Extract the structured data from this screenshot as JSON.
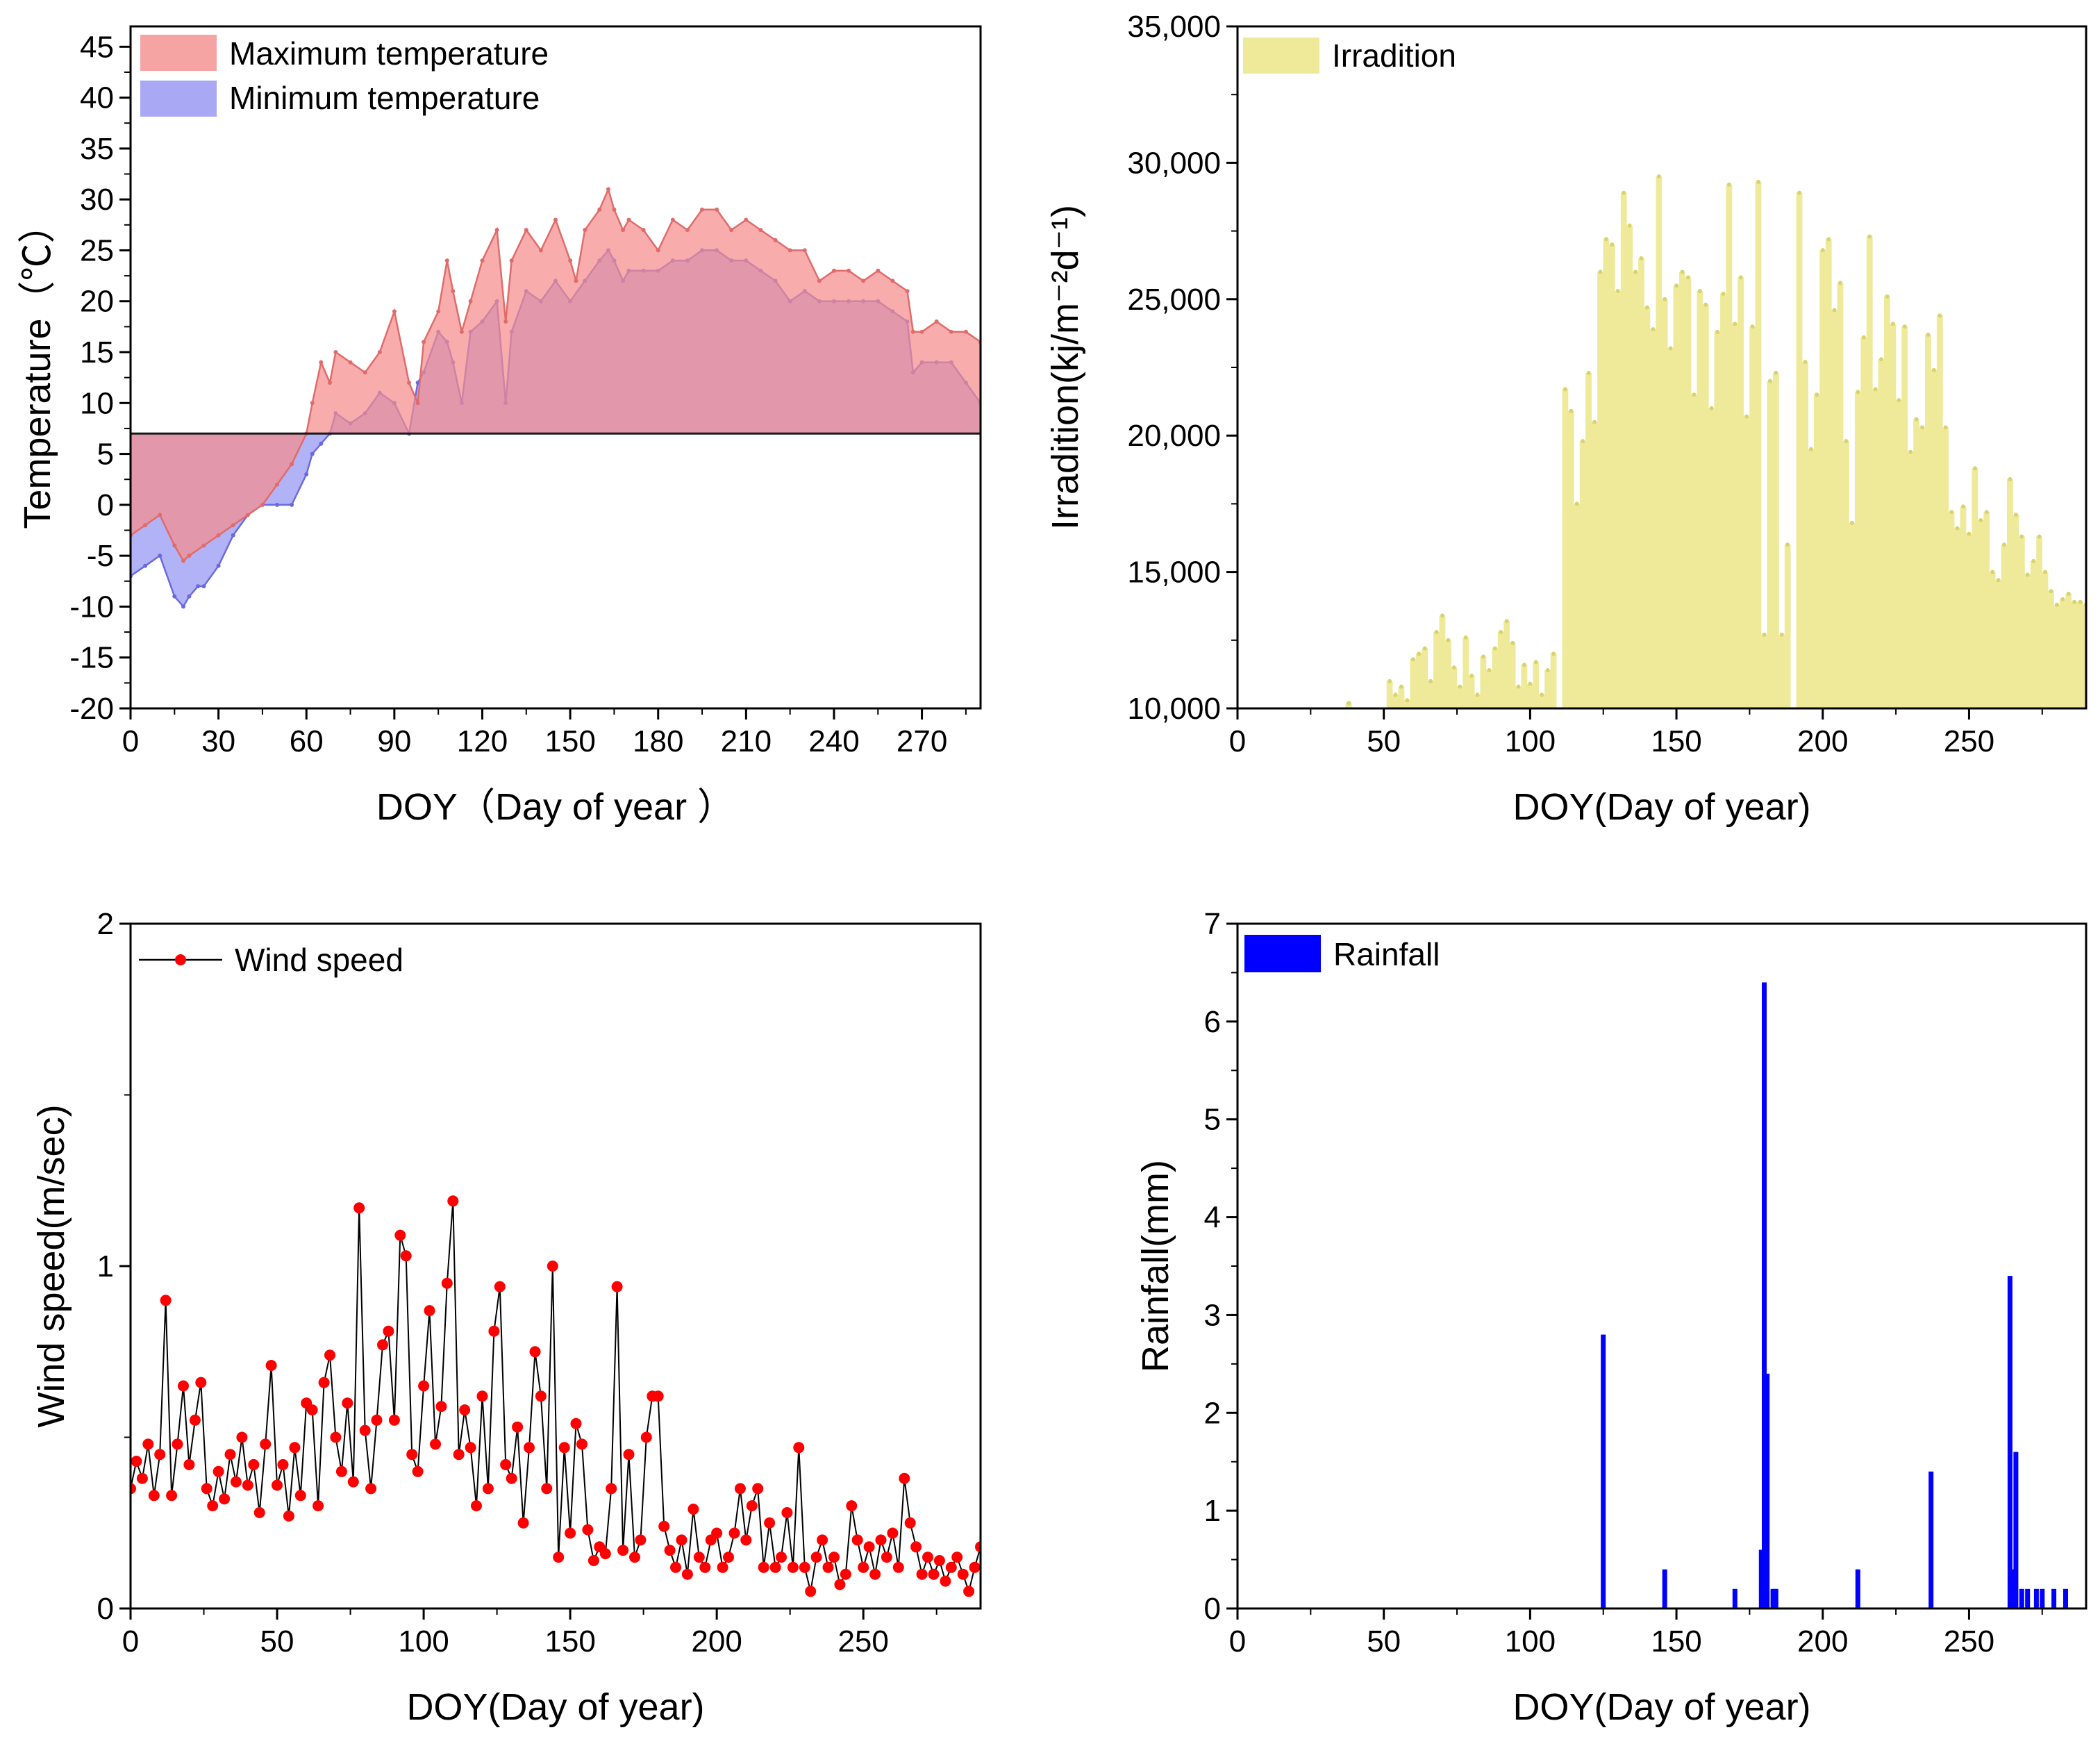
{
  "chart_data": [
    {
      "id": "temperature",
      "type": "area",
      "xlabel": "DOY（Day of year ）",
      "ylabel": "Temperature（℃）",
      "xlim": [
        0,
        290
      ],
      "ylim": [
        -20,
        47
      ],
      "xticks": [
        0,
        30,
        60,
        90,
        120,
        150,
        180,
        210,
        240,
        270
      ],
      "yticks": [
        -20,
        -15,
        -10,
        -5,
        0,
        5,
        10,
        15,
        20,
        25,
        30,
        35,
        40,
        45
      ],
      "baseline": 7,
      "series": [
        {
          "name": "Maximum temperature",
          "color": "#f5a3a3",
          "line_color": "#e06b6b",
          "x": [
            0,
            5,
            10,
            15,
            18,
            20,
            25,
            30,
            35,
            40,
            45,
            50,
            55,
            60,
            62,
            65,
            68,
            70,
            75,
            80,
            85,
            90,
            95,
            98,
            100,
            105,
            108,
            110,
            113,
            116,
            120,
            125,
            128,
            130,
            135,
            140,
            145,
            150,
            152,
            155,
            160,
            163,
            165,
            168,
            170,
            175,
            180,
            185,
            190,
            195,
            200,
            205,
            210,
            215,
            220,
            225,
            230,
            235,
            240,
            245,
            250,
            255,
            260,
            265,
            267,
            270,
            275,
            280,
            285,
            290
          ],
          "values": [
            -3,
            -2,
            -1,
            -4,
            -5.5,
            -5,
            -4,
            -3,
            -2,
            -1,
            0,
            2,
            4,
            7,
            10,
            14,
            12,
            15,
            14,
            13,
            15,
            19,
            12,
            10,
            16,
            19,
            24,
            21,
            17,
            20,
            24,
            27,
            18,
            24,
            27,
            25,
            28,
            24,
            22,
            27,
            29,
            31,
            29,
            27,
            28,
            27,
            25,
            28,
            27,
            29,
            29,
            27,
            28,
            27,
            26,
            25,
            25,
            22,
            23,
            23,
            22,
            23,
            22,
            21,
            17,
            17,
            18,
            17,
            17,
            16
          ]
        },
        {
          "name": "Minimum temperature",
          "color": "#a8a8f5",
          "line_color": "#6a6ae0",
          "x": [
            0,
            5,
            10,
            15,
            18,
            20,
            23,
            25,
            30,
            35,
            40,
            45,
            50,
            55,
            60,
            62,
            65,
            68,
            70,
            75,
            80,
            85,
            90,
            95,
            98,
            100,
            105,
            108,
            110,
            113,
            116,
            120,
            125,
            128,
            130,
            135,
            140,
            145,
            150,
            155,
            160,
            163,
            165,
            168,
            170,
            175,
            180,
            185,
            190,
            195,
            200,
            205,
            210,
            215,
            220,
            225,
            230,
            235,
            240,
            245,
            250,
            255,
            260,
            265,
            267,
            270,
            275,
            280,
            285,
            290
          ],
          "values": [
            -7,
            -6,
            -5,
            -9,
            -10,
            -9,
            -8,
            -8,
            -6,
            -3,
            -1,
            0,
            0,
            0,
            3,
            5,
            6,
            7,
            9,
            8,
            9,
            11,
            10,
            7,
            12,
            13,
            17,
            16,
            14,
            10,
            17,
            18,
            20,
            10,
            17,
            21,
            20,
            22,
            20,
            22,
            24,
            25,
            24,
            22,
            23,
            23,
            23,
            24,
            24,
            25,
            25,
            24,
            24,
            23,
            22,
            20,
            21,
            20,
            20,
            20,
            20,
            20,
            19,
            18,
            13,
            14,
            14,
            14,
            12,
            10
          ]
        }
      ]
    },
    {
      "id": "irradiation",
      "type": "bar",
      "xlabel": "DOY(Day of year)",
      "ylabel": "Irradition(kj/m⁻²d⁻¹)",
      "xlim": [
        0,
        290
      ],
      "ylim": [
        10000,
        35000
      ],
      "xticks": [
        0,
        50,
        100,
        150,
        200,
        250
      ],
      "yticks": [
        10000,
        15000,
        20000,
        25000,
        30000,
        35000
      ],
      "ytick_labels": [
        "10,000",
        "15,000",
        "20,000",
        "25,000",
        "30,000",
        "35,000"
      ],
      "series": [
        {
          "name": "Irradition",
          "color": "#eeea9a",
          "dot_color": "#d8d36c",
          "x": [
            38,
            52,
            54,
            56,
            58,
            60,
            62,
            64,
            66,
            68,
            70,
            72,
            74,
            76,
            78,
            80,
            82,
            84,
            86,
            88,
            90,
            92,
            94,
            96,
            98,
            100,
            102,
            104,
            106,
            108,
            112,
            114,
            116,
            118,
            120,
            122,
            124,
            126,
            128,
            130,
            132,
            134,
            136,
            138,
            140,
            142,
            144,
            146,
            148,
            150,
            152,
            154,
            156,
            158,
            160,
            162,
            164,
            166,
            168,
            170,
            172,
            174,
            176,
            178,
            180,
            182,
            184,
            186,
            188,
            192,
            194,
            196,
            198,
            200,
            202,
            204,
            206,
            208,
            210,
            212,
            214,
            216,
            218,
            220,
            222,
            224,
            226,
            228,
            230,
            232,
            234,
            236,
            238,
            240,
            242,
            244,
            246,
            248,
            250,
            252,
            254,
            256,
            258,
            260,
            262,
            264,
            266,
            268,
            270,
            272,
            274,
            276,
            278,
            280,
            282,
            284,
            286,
            288,
            290
          ],
          "values": [
            10200,
            11000,
            10500,
            10800,
            10300,
            11800,
            12000,
            12200,
            11000,
            12800,
            13400,
            12500,
            11500,
            10800,
            12600,
            11200,
            10500,
            11900,
            11400,
            12200,
            12800,
            13200,
            12400,
            10800,
            11600,
            10900,
            11700,
            10500,
            11400,
            12000,
            21700,
            20900,
            17500,
            19800,
            22300,
            20500,
            26000,
            27200,
            27000,
            25300,
            28900,
            27700,
            26000,
            26500,
            24700,
            23900,
            29500,
            25000,
            23200,
            25500,
            26000,
            25800,
            21500,
            25300,
            24800,
            21000,
            23800,
            25200,
            29200,
            24100,
            25800,
            20700,
            24000,
            29300,
            12700,
            22000,
            22300,
            12700,
            16000,
            28900,
            22700,
            19500,
            21500,
            26800,
            27200,
            24600,
            25600,
            19800,
            16800,
            21600,
            23600,
            27300,
            21700,
            22800,
            25100,
            24100,
            21300,
            24000,
            19400,
            20600,
            20300,
            23700,
            22400,
            24400,
            20300,
            17200,
            16600,
            17400,
            16400,
            18800,
            16900,
            17200,
            15000,
            14700,
            16000,
            18400,
            17100,
            16300,
            14900,
            15400,
            16300,
            15000,
            14300,
            13800,
            14000,
            14200,
            13900,
            13900,
            13800
          ]
        }
      ]
    },
    {
      "id": "wind",
      "type": "line",
      "xlabel": "DOY(Day of year)",
      "ylabel": "Wind speed(m/sec)",
      "xlim": [
        0,
        290
      ],
      "ylim": [
        0,
        2
      ],
      "xticks": [
        0,
        50,
        100,
        150,
        200,
        250
      ],
      "yticks": [
        0,
        1,
        2
      ],
      "series": [
        {
          "name": "Wind speed",
          "color": "#ff0000",
          "line_color": "#000000",
          "x": [
            0,
            2,
            4,
            6,
            8,
            10,
            12,
            14,
            16,
            18,
            20,
            22,
            24,
            26,
            28,
            30,
            32,
            34,
            36,
            38,
            40,
            42,
            44,
            46,
            48,
            50,
            52,
            54,
            56,
            58,
            60,
            62,
            64,
            66,
            68,
            70,
            72,
            74,
            76,
            78,
            80,
            82,
            84,
            86,
            88,
            90,
            92,
            94,
            96,
            98,
            100,
            102,
            104,
            106,
            108,
            110,
            112,
            114,
            116,
            118,
            120,
            122,
            124,
            126,
            128,
            130,
            132,
            134,
            136,
            138,
            140,
            142,
            144,
            146,
            148,
            150,
            152,
            154,
            156,
            158,
            160,
            162,
            164,
            166,
            168,
            170,
            172,
            174,
            176,
            178,
            180,
            182,
            184,
            186,
            188,
            190,
            192,
            194,
            196,
            198,
            200,
            202,
            204,
            206,
            208,
            210,
            212,
            214,
            216,
            218,
            220,
            222,
            224,
            226,
            228,
            230,
            232,
            234,
            236,
            238,
            240,
            242,
            244,
            246,
            248,
            250,
            252,
            254,
            256,
            258,
            260,
            262,
            264,
            266,
            268,
            270,
            272,
            274,
            276,
            278,
            280,
            282,
            284,
            286,
            288,
            290
          ],
          "values": [
            0.35,
            0.43,
            0.38,
            0.48,
            0.33,
            0.45,
            0.9,
            0.33,
            0.48,
            0.65,
            0.42,
            0.55,
            0.66,
            0.35,
            0.3,
            0.4,
            0.32,
            0.45,
            0.37,
            0.5,
            0.36,
            0.42,
            0.28,
            0.48,
            0.71,
            0.36,
            0.42,
            0.27,
            0.47,
            0.33,
            0.6,
            0.58,
            0.3,
            0.66,
            0.74,
            0.5,
            0.4,
            0.6,
            0.37,
            1.17,
            0.52,
            0.35,
            0.55,
            0.77,
            0.81,
            0.55,
            1.09,
            1.03,
            0.45,
            0.4,
            0.65,
            0.87,
            0.48,
            0.59,
            0.95,
            1.19,
            0.45,
            0.58,
            0.47,
            0.3,
            0.62,
            0.35,
            0.81,
            0.94,
            0.42,
            0.38,
            0.53,
            0.25,
            0.47,
            0.75,
            0.62,
            0.35,
            1.0,
            0.15,
            0.47,
            0.22,
            0.54,
            0.48,
            0.23,
            0.14,
            0.18,
            0.16,
            0.35,
            0.94,
            0.17,
            0.45,
            0.15,
            0.2,
            0.5,
            0.62,
            0.62,
            0.24,
            0.17,
            0.12,
            0.2,
            0.1,
            0.29,
            0.15,
            0.12,
            0.2,
            0.22,
            0.12,
            0.15,
            0.22,
            0.35,
            0.2,
            0.3,
            0.35,
            0.12,
            0.25,
            0.12,
            0.15,
            0.28,
            0.12,
            0.47,
            0.12,
            0.05,
            0.15,
            0.2,
            0.12,
            0.15,
            0.07,
            0.1,
            0.3,
            0.2,
            0.12,
            0.18,
            0.1,
            0.2,
            0.15,
            0.22,
            0.12,
            0.38,
            0.25,
            0.18,
            0.1,
            0.15,
            0.1,
            0.14,
            0.08,
            0.12,
            0.15,
            0.1,
            0.05,
            0.12,
            0.18
          ]
        }
      ]
    },
    {
      "id": "rainfall",
      "type": "bar",
      "xlabel": "DOY(Day of year)",
      "ylabel": "Rainfall(mm)",
      "xlim": [
        0,
        290
      ],
      "ylim": [
        0,
        7
      ],
      "xticks": [
        0,
        50,
        100,
        150,
        200,
        250
      ],
      "yticks": [
        0,
        1,
        2,
        3,
        4,
        5,
        6,
        7
      ],
      "series": [
        {
          "name": "Rainfall",
          "color": "#0000ff",
          "x": [
            125,
            146,
            170,
            179,
            180,
            181,
            183,
            184,
            212,
            237,
            264,
            265,
            266,
            268,
            270,
            273,
            275,
            279,
            283
          ],
          "values": [
            2.8,
            0.4,
            0.2,
            0.6,
            6.4,
            2.4,
            0.2,
            0.2,
            0.4,
            1.4,
            3.4,
            0.4,
            1.6,
            0.2,
            0.2,
            0.2,
            0.2,
            0.2,
            0.2
          ]
        }
      ]
    }
  ]
}
